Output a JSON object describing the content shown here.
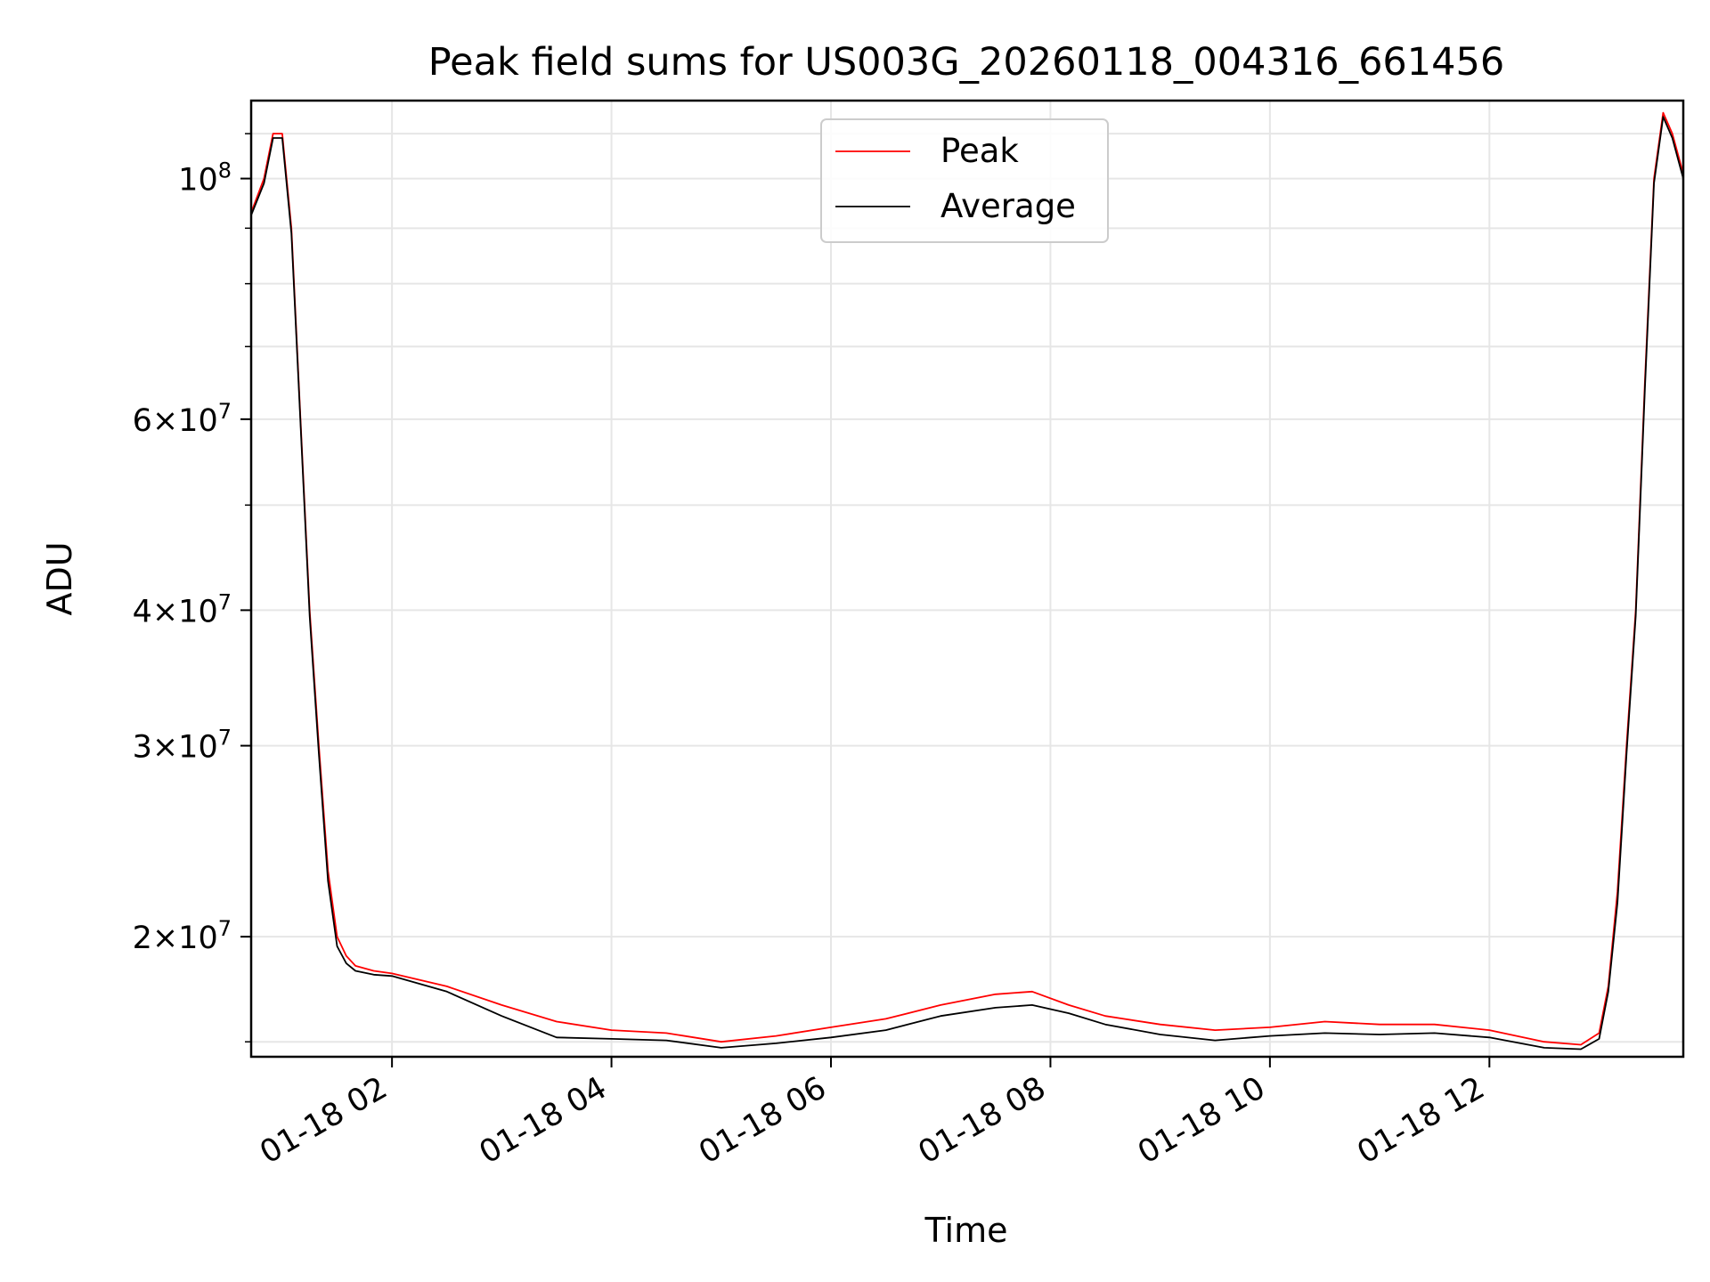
{
  "chart_data": {
    "type": "line",
    "title": "Peak field sums for US003G_20260118_004316_661456",
    "xlabel": "Time",
    "ylabel": "ADU",
    "yscale": "log",
    "xlim": [
      "01-18 00:43",
      "01-18 13:46"
    ],
    "ylim": [
      15500000,
      118000000
    ],
    "grid": true,
    "legend_position": "upper center",
    "x_ticks": [
      "01-18 02",
      "01-18 04",
      "01-18 06",
      "01-18 08",
      "01-18 10",
      "01-18 12"
    ],
    "y_ticks": [
      {
        "value": 20000000,
        "mant": "2",
        "base": "10",
        "exp": "7"
      },
      {
        "value": 30000000,
        "mant": "3",
        "base": "10",
        "exp": "7"
      },
      {
        "value": 40000000,
        "mant": "4",
        "base": "10",
        "exp": "7"
      },
      {
        "value": 60000000,
        "mant": "6",
        "base": "10",
        "exp": "7"
      },
      {
        "value": 100000000,
        "mant": "",
        "base": "10",
        "exp": "8"
      }
    ],
    "series": [
      {
        "name": "Peak",
        "color": "#ff0000",
        "x": [
          "01-18 00:43",
          "01-18 00:50",
          "01-18 00:55",
          "01-18 01:00",
          "01-18 01:05",
          "01-18 01:10",
          "01-18 01:15",
          "01-18 01:20",
          "01-18 01:25",
          "01-18 01:30",
          "01-18 01:35",
          "01-18 01:40",
          "01-18 01:50",
          "01-18 02:00",
          "01-18 02:30",
          "01-18 03:00",
          "01-18 03:30",
          "01-18 04:00",
          "01-18 04:30",
          "01-18 05:00",
          "01-18 05:30",
          "01-18 06:00",
          "01-18 06:30",
          "01-18 07:00",
          "01-18 07:30",
          "01-18 07:50",
          "01-18 08:10",
          "01-18 08:30",
          "01-18 09:00",
          "01-18 09:30",
          "01-18 10:00",
          "01-18 10:30",
          "01-18 11:00",
          "01-18 11:30",
          "01-18 12:00",
          "01-18 12:30",
          "01-18 12:50",
          "01-18 13:00",
          "01-18 13:05",
          "01-18 13:10",
          "01-18 13:15",
          "01-18 13:20",
          "01-18 13:25",
          "01-18 13:30",
          "01-18 13:35",
          "01-18 13:40",
          "01-18 13:46"
        ],
        "values": [
          93000000,
          100000000,
          110000000,
          110000000,
          90000000,
          60000000,
          40000000,
          30000000,
          23000000,
          20000000,
          19200000,
          18800000,
          18600000,
          18500000,
          18000000,
          17300000,
          16700000,
          16400000,
          16300000,
          16000000,
          16200000,
          16500000,
          16800000,
          17300000,
          17700000,
          17800000,
          17300000,
          16900000,
          16600000,
          16400000,
          16500000,
          16700000,
          16600000,
          16600000,
          16400000,
          16000000,
          15900000,
          16300000,
          18000000,
          22000000,
          30000000,
          40000000,
          65000000,
          100000000,
          115000000,
          110000000,
          101000000
        ]
      },
      {
        "name": "Average",
        "color": "#000000",
        "x": [
          "01-18 00:43",
          "01-18 00:50",
          "01-18 00:55",
          "01-18 01:00",
          "01-18 01:05",
          "01-18 01:10",
          "01-18 01:15",
          "01-18 01:20",
          "01-18 01:25",
          "01-18 01:30",
          "01-18 01:35",
          "01-18 01:40",
          "01-18 01:50",
          "01-18 02:00",
          "01-18 02:30",
          "01-18 03:00",
          "01-18 03:30",
          "01-18 04:00",
          "01-18 04:30",
          "01-18 05:00",
          "01-18 05:30",
          "01-18 06:00",
          "01-18 06:30",
          "01-18 07:00",
          "01-18 07:30",
          "01-18 07:50",
          "01-18 08:10",
          "01-18 08:30",
          "01-18 09:00",
          "01-18 09:30",
          "01-18 10:00",
          "01-18 10:30",
          "01-18 11:00",
          "01-18 11:30",
          "01-18 12:00",
          "01-18 12:30",
          "01-18 12:50",
          "01-18 13:00",
          "01-18 13:05",
          "01-18 13:10",
          "01-18 13:15",
          "01-18 13:20",
          "01-18 13:25",
          "01-18 13:30",
          "01-18 13:35",
          "01-18 13:40",
          "01-18 13:46"
        ],
        "values": [
          92500000,
          99000000,
          109000000,
          109000000,
          89000000,
          59500000,
          39500000,
          29500000,
          22500000,
          19600000,
          18900000,
          18600000,
          18450000,
          18400000,
          17800000,
          16900000,
          16150000,
          16100000,
          16050000,
          15800000,
          15950000,
          16150000,
          16400000,
          16900000,
          17200000,
          17300000,
          17000000,
          16600000,
          16250000,
          16050000,
          16200000,
          16300000,
          16250000,
          16300000,
          16150000,
          15800000,
          15750000,
          16100000,
          17800000,
          21500000,
          29500000,
          39500000,
          64000000,
          99000000,
          114000000,
          109000000,
          100000000
        ]
      }
    ]
  }
}
